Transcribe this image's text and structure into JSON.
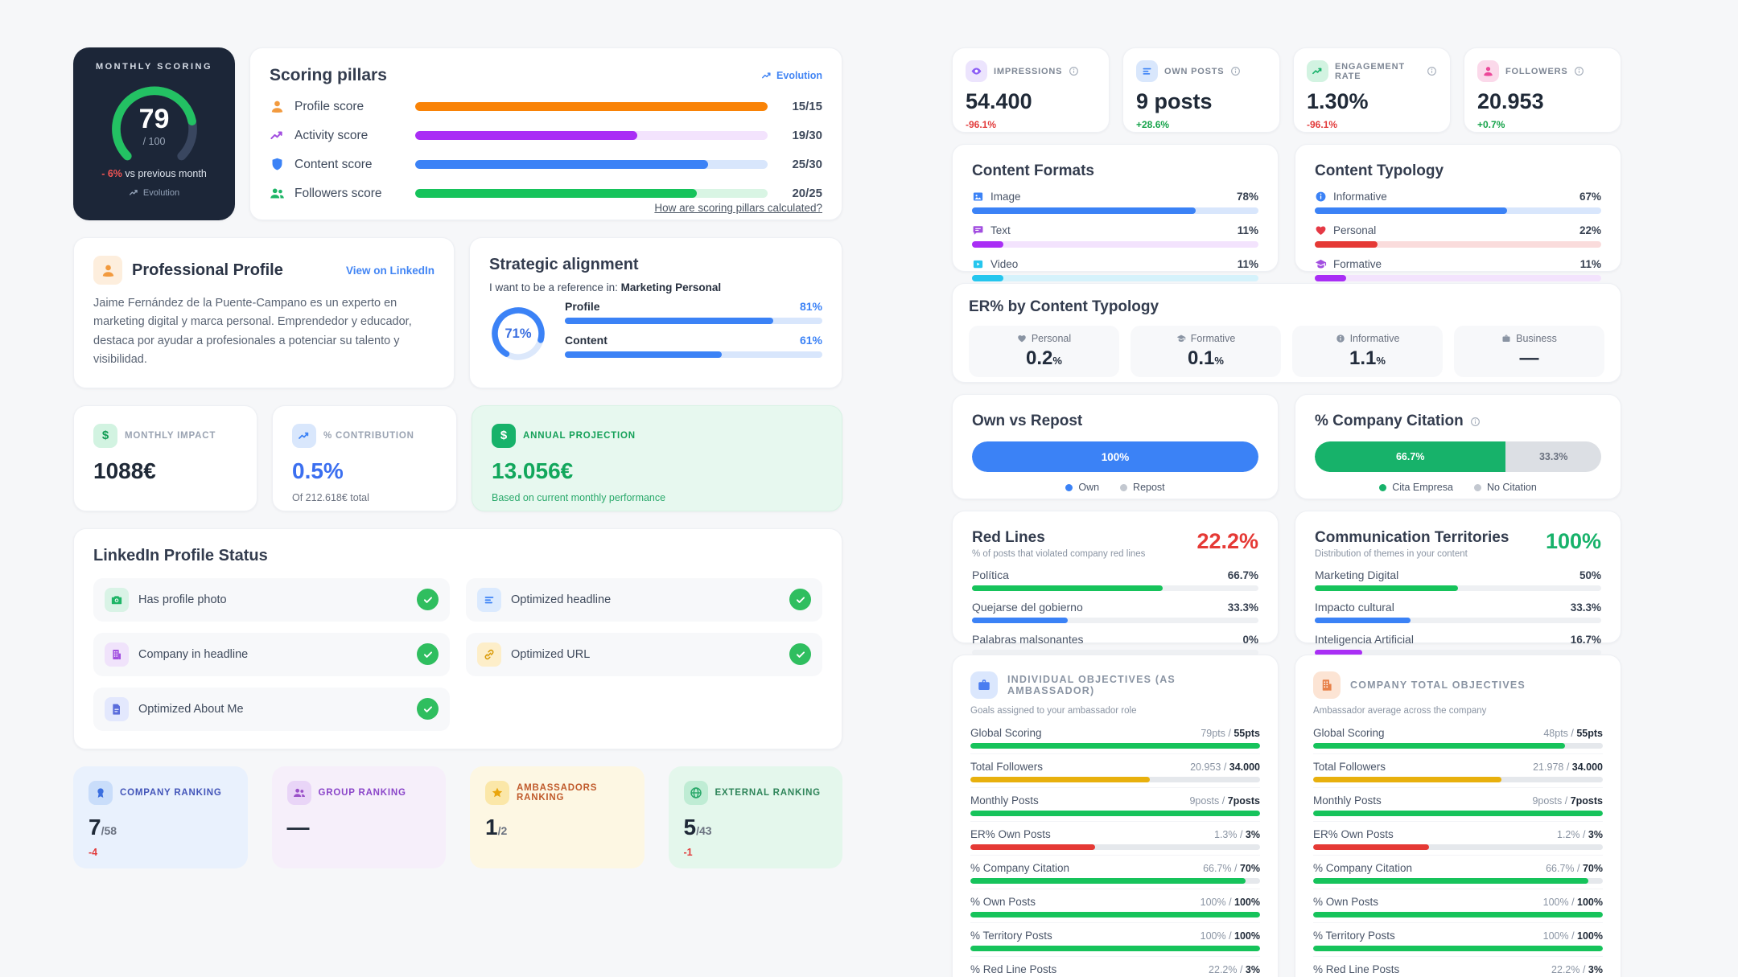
{
  "colors": {
    "page_bg": "#f6f7f9",
    "card_bg": "#ffffff",
    "dark_card": "#1c2638",
    "accent_blue": "#3b82f6",
    "accent_green": "#17b26a",
    "accent_red": "#e53935",
    "accent_orange": "#f98307",
    "accent_purple": "#a92ef5",
    "accent_cyan": "#25c6ee",
    "accent_yellow": "#e8b00d",
    "accent_pink": "#ec4899"
  },
  "monthly_scoring": {
    "title": "MONTHLY SCORING",
    "score": "79",
    "score_max": "/ 100",
    "score_pct": 79,
    "delta": "- 6%",
    "delta_note": " vs previous month",
    "evolution_label": "Evolution"
  },
  "scoring_pillars": {
    "title": "Scoring pillars",
    "evolution_label": "Evolution",
    "rows": [
      {
        "label": "Profile score",
        "value": "15/15",
        "pct": 100
      },
      {
        "label": "Activity score",
        "value": "19/30",
        "pct": 63
      },
      {
        "label": "Content score",
        "value": "25/30",
        "pct": 83
      },
      {
        "label": "Followers score",
        "value": "20/25",
        "pct": 80
      }
    ],
    "footer_link": "How are scoring pillars calculated?"
  },
  "professional_profile": {
    "title": "Professional Profile",
    "link": "View on LinkedIn",
    "bio": "Jaime Fernández de la Puente-Campano es un experto en marketing digital y marca personal. Emprendedor y educador, destaca por ayudar a profesionales a potenciar su talento y visibilidad."
  },
  "strategic_alignment": {
    "title": "Strategic alignment",
    "intro": "I want to be a reference in: ",
    "focus": "Marketing Personal",
    "ring_value": "71%",
    "ring_pct": 71,
    "bars": [
      {
        "label": "Profile",
        "value": "81%",
        "pct": 81
      },
      {
        "label": "Content",
        "value": "61%",
        "pct": 61
      }
    ]
  },
  "impact": {
    "monthly": {
      "label": "MONTHLY IMPACT",
      "value": "1088€",
      "icon_glyph": "$"
    },
    "contribution": {
      "label": "% CONTRIBUTION",
      "value": "0.5%",
      "note": "Of 212.618€ total"
    },
    "projection": {
      "label": "ANNUAL PROJECTION",
      "value": "13.056€",
      "note": "Based on current monthly performance",
      "icon_glyph": "$"
    }
  },
  "profile_status": {
    "title": "LinkedIn Profile Status",
    "items": [
      "Has profile photo",
      "Optimized headline",
      "Company in headline",
      "Optimized URL",
      "Optimized About Me"
    ]
  },
  "rankings": [
    {
      "label": "COMPANY RANKING",
      "value": "7",
      "total": "/58",
      "delta": "-4"
    },
    {
      "label": "GROUP RANKING",
      "value": "—",
      "total": "",
      "delta": ""
    },
    {
      "label": "AMBASSADORS RANKING",
      "value": "1",
      "total": "/2",
      "delta": ""
    },
    {
      "label": "EXTERNAL RANKING",
      "value": "5",
      "total": "/43",
      "delta": "-1"
    }
  ],
  "kpis": [
    {
      "label": "IMPRESSIONS",
      "value": "54.400",
      "delta": "-96.1%"
    },
    {
      "label": "OWN POSTS",
      "value": "9 posts",
      "delta": "+28.6%"
    },
    {
      "label": "ENGAGEMENT RATE",
      "value": "1.30%",
      "delta": "-96.1%"
    },
    {
      "label": "FOLLOWERS",
      "value": "20.953",
      "delta": "+0.7%"
    }
  ],
  "content_formats": {
    "title": "Content Formats",
    "rows": [
      {
        "label": "Image",
        "value": "78%",
        "pct": 78
      },
      {
        "label": "Text",
        "value": "11%",
        "pct": 11
      },
      {
        "label": "Video",
        "value": "11%",
        "pct": 11
      }
    ]
  },
  "content_typology": {
    "title": "Content Typology",
    "rows": [
      {
        "label": "Informative",
        "value": "67%",
        "pct": 67
      },
      {
        "label": "Personal",
        "value": "22%",
        "pct": 22
      },
      {
        "label": "Formative",
        "value": "11%",
        "pct": 11
      }
    ]
  },
  "er_typology": {
    "title": "ER% by Content Typology",
    "cells": [
      {
        "label": "Personal",
        "value": "0.2",
        "suffix": "%"
      },
      {
        "label": "Formative",
        "value": "0.1",
        "suffix": "%"
      },
      {
        "label": "Informative",
        "value": "1.1",
        "suffix": "%"
      },
      {
        "label": "Business",
        "value": "—",
        "suffix": ""
      }
    ]
  },
  "own_vs_repost": {
    "title": "Own vs Repost",
    "value": "100%",
    "pct": 100,
    "legend": [
      "Own",
      "Repost"
    ]
  },
  "company_citation": {
    "title": "% Company Citation",
    "seg_yes": "66.7%",
    "seg_yes_pct": 66.7,
    "seg_no": "33.3%",
    "legend": [
      "Cita Empresa",
      "No Citation"
    ]
  },
  "red_lines": {
    "title": "Red Lines",
    "headline": "22.2%",
    "subtitle": "% of posts that violated company red lines",
    "rows": [
      {
        "label": "Política",
        "value": "66.7%",
        "pct": 66.7
      },
      {
        "label": "Quejarse del gobierno",
        "value": "33.3%",
        "pct": 33.3
      },
      {
        "label": "Palabras malsonantes",
        "value": "0%",
        "pct": 0
      }
    ]
  },
  "territories": {
    "title": "Communication Territories",
    "headline": "100%",
    "subtitle": "Distribution of themes in your content",
    "rows": [
      {
        "label": "Marketing Digital",
        "value": "50%",
        "pct": 50
      },
      {
        "label": "Impacto cultural",
        "value": "33.3%",
        "pct": 33.3
      },
      {
        "label": "Inteligencia Artificial",
        "value": "16.7%",
        "pct": 16.7
      }
    ]
  },
  "individual_objectives": {
    "title": "INDIVIDUAL OBJECTIVES (AS AMBASSADOR)",
    "subtitle": "Goals assigned to your ambassador role",
    "rows": [
      {
        "label": "Global Scoring",
        "current": "79pts / ",
        "target": "55pts",
        "pct": 100
      },
      {
        "label": "Total Followers",
        "current": "20.953 / ",
        "target": "34.000",
        "pct": 62
      },
      {
        "label": "Monthly Posts",
        "current": "9posts / ",
        "target": "7posts",
        "pct": 100
      },
      {
        "label": "ER% Own Posts",
        "current": "1.3% / ",
        "target": "3%",
        "pct": 43
      },
      {
        "label": "% Company Citation",
        "current": "66.7% / ",
        "target": "70%",
        "pct": 95
      },
      {
        "label": "% Own Posts",
        "current": "100% / ",
        "target": "100%",
        "pct": 100
      },
      {
        "label": "% Territory Posts",
        "current": "100% / ",
        "target": "100%",
        "pct": 100
      },
      {
        "label": "% Red Line Posts",
        "current": "22.2% / ",
        "target": "3%",
        "pct": 100
      }
    ]
  },
  "company_objectives": {
    "title": "COMPANY TOTAL OBJECTIVES",
    "subtitle": "Ambassador average across the company",
    "rows": [
      {
        "label": "Global Scoring",
        "current": "48pts / ",
        "target": "55pts",
        "pct": 87
      },
      {
        "label": "Total Followers",
        "current": "21.978 / ",
        "target": "34.000",
        "pct": 65
      },
      {
        "label": "Monthly Posts",
        "current": "9posts / ",
        "target": "7posts",
        "pct": 100
      },
      {
        "label": "ER% Own Posts",
        "current": "1.2% / ",
        "target": "3%",
        "pct": 40
      },
      {
        "label": "% Company Citation",
        "current": "66.7% / ",
        "target": "70%",
        "pct": 95
      },
      {
        "label": "% Own Posts",
        "current": "100% / ",
        "target": "100%",
        "pct": 100
      },
      {
        "label": "% Territory Posts",
        "current": "100% / ",
        "target": "100%",
        "pct": 100
      },
      {
        "label": "% Red Line Posts",
        "current": "22.2% / ",
        "target": "3%",
        "pct": 100
      }
    ]
  }
}
